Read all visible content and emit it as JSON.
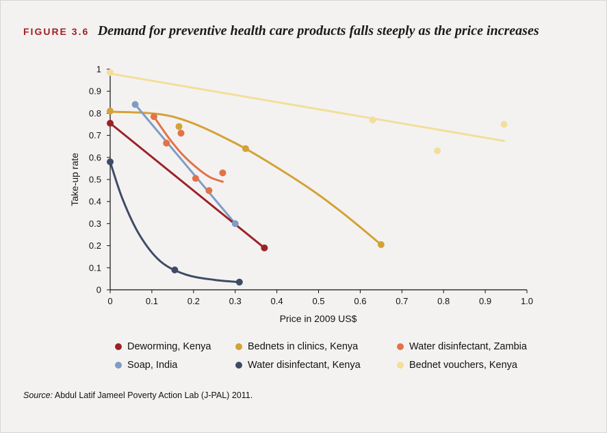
{
  "figure": {
    "label": "FIGURE 3.6",
    "title": "Demand for preventive health care products falls steeply as the price increases"
  },
  "source": {
    "prefix": "Source:",
    "text": "Abdul Latif Jameel Poverty Action Lab (J-PAL) 2011."
  },
  "chart_data": {
    "type": "scatter",
    "xlabel": "Price in 2009 US$",
    "ylabel": "Take-up rate",
    "xlim": [
      0,
      1.0
    ],
    "ylim": [
      0,
      1
    ],
    "x_ticks": [
      "0",
      "0.1",
      "0.2",
      "0.3",
      "0.4",
      "0.5",
      "0.6",
      "0.7",
      "0.8",
      "0.9",
      "1.0"
    ],
    "y_ticks": [
      "0",
      "0.1",
      "0.2",
      "0.3",
      "0.4",
      "0.5",
      "0.6",
      "0.7",
      "0.8",
      "0.9",
      "1"
    ],
    "grid": false,
    "legend_position": "bottom",
    "series": [
      {
        "name": "Bednet vouchers, Kenya",
        "color": "#f3de9a",
        "points": [
          [
            0,
            0.985
          ],
          [
            0.63,
            0.77
          ],
          [
            0.785,
            0.63
          ],
          [
            0.945,
            0.75
          ]
        ],
        "fit": [
          [
            0,
            0.98
          ],
          [
            0.945,
            0.675
          ]
        ]
      },
      {
        "name": "Bednets in clinics, Kenya",
        "color": "#d4a235",
        "points": [
          [
            0,
            0.81
          ],
          [
            0.165,
            0.74
          ],
          [
            0.325,
            0.64
          ],
          [
            0.65,
            0.205
          ]
        ],
        "fit": [
          [
            0,
            0.808
          ],
          [
            0.15,
            0.785
          ],
          [
            0.3,
            0.665
          ],
          [
            0.45,
            0.495
          ],
          [
            0.55,
            0.36
          ],
          [
            0.65,
            0.205
          ]
        ]
      },
      {
        "name": "Water disinfectant, Zambia",
        "color": "#e37248",
        "points": [
          [
            0.105,
            0.785
          ],
          [
            0.135,
            0.665
          ],
          [
            0.17,
            0.71
          ],
          [
            0.205,
            0.505
          ],
          [
            0.237,
            0.45
          ],
          [
            0.27,
            0.53
          ]
        ],
        "fit": [
          [
            0.105,
            0.785
          ],
          [
            0.14,
            0.69
          ],
          [
            0.175,
            0.61
          ],
          [
            0.21,
            0.55
          ],
          [
            0.24,
            0.51
          ],
          [
            0.27,
            0.49
          ]
        ]
      },
      {
        "name": "Soap, India",
        "color": "#7f9cc5",
        "points": [
          [
            0.06,
            0.84
          ],
          [
            0.3,
            0.3
          ]
        ],
        "fit": [
          [
            0.06,
            0.84
          ],
          [
            0.3,
            0.3
          ]
        ]
      },
      {
        "name": "Deworming, Kenya",
        "color": "#9b2226",
        "points": [
          [
            0,
            0.755
          ],
          [
            0.37,
            0.19
          ]
        ],
        "fit": [
          [
            0,
            0.755
          ],
          [
            0.37,
            0.19
          ]
        ]
      },
      {
        "name": "Water disinfectant, Kenya",
        "color": "#3e4b66",
        "points": [
          [
            0,
            0.58
          ],
          [
            0.155,
            0.09
          ],
          [
            0.31,
            0.035
          ]
        ],
        "fit": [
          [
            0,
            0.58
          ],
          [
            0.03,
            0.41
          ],
          [
            0.07,
            0.25
          ],
          [
            0.12,
            0.13
          ],
          [
            0.18,
            0.07
          ],
          [
            0.25,
            0.045
          ],
          [
            0.31,
            0.035
          ]
        ]
      }
    ],
    "legend_order": [
      "Deworming, Kenya",
      "Bednets in clinics, Kenya",
      "Water disinfectant, Zambia",
      "Soap, India",
      "Water disinfectant, Kenya",
      "Bednet vouchers, Kenya"
    ]
  }
}
